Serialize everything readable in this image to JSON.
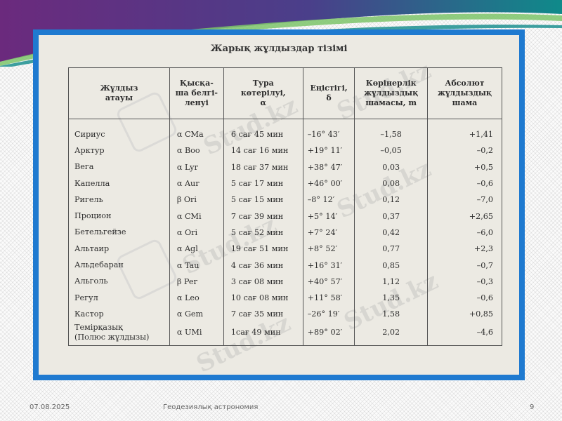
{
  "table": {
    "title": "Жарық жұлдыздар тізімі",
    "headers": [
      [
        "Жұлдыз",
        "атауы"
      ],
      [
        "Қысқа-",
        "ша белгі-",
        "ленуі"
      ],
      [
        "Тура",
        "көтерілуі,",
        "α"
      ],
      [
        "Еңістігі,",
        "δ"
      ],
      [
        "Көрінерлік",
        "жұлдыздық",
        "шамасы, m"
      ],
      [
        "Абсолют",
        "жұлдыздық",
        "шама"
      ]
    ],
    "rows": [
      {
        "name": [
          "Сириус"
        ],
        "sym": "α  CMa",
        "ra": "6 сағ  45 мин",
        "dec": "–16° 43′",
        "app": "–1,58",
        "abs": "+1,41"
      },
      {
        "name": [
          "Арктур"
        ],
        "sym": "α  Boo",
        "ra": "14 сағ 16 мин",
        "dec": "+19° 11′",
        "app": "–0,05",
        "abs": "–0,2"
      },
      {
        "name": [
          "Вега"
        ],
        "sym": "α  Lyr",
        "ra": "18 сағ 37 мин",
        "dec": "+38° 47′",
        "app": "0,03",
        "abs": "+0,5"
      },
      {
        "name": [
          "Капелла"
        ],
        "sym": "α  Aur",
        "ra": "5 сағ  17 мин",
        "dec": "+46° 00′",
        "app": "0,08",
        "abs": "–0,6"
      },
      {
        "name": [
          "Ригель"
        ],
        "sym": "β  Ori",
        "ra": "5 сағ  15 мин",
        "dec": "–8° 12′",
        "app": "0,12",
        "abs": "–7,0"
      },
      {
        "name": [
          "Процион"
        ],
        "sym": "α  CMi",
        "ra": "7 сағ  39 мин",
        "dec": "+5° 14′",
        "app": "0,37",
        "abs": "+2,65"
      },
      {
        "name": [
          "Бетельгейзе"
        ],
        "sym": "α  Ori",
        "ra": "5 сағ  52 мин",
        "dec": "+7° 24′",
        "app": "0,42",
        "abs": "–6,0"
      },
      {
        "name": [
          "Альтаир"
        ],
        "sym": "α  Agl",
        "ra": "19 сағ 51 мин",
        "dec": "+8° 52′",
        "app": "0,77",
        "abs": "+2,3"
      },
      {
        "name": [
          "Альдебаран"
        ],
        "sym": "α  Tau",
        "ra": "4 сағ  36 мин",
        "dec": "+16° 31′",
        "app": "0,85",
        "abs": "–0,7"
      },
      {
        "name": [
          "Альголь"
        ],
        "sym": "β  Per",
        "ra": "3 сағ  08 мин",
        "dec": "+40° 57′",
        "app": "1,12",
        "abs": "–0,3"
      },
      {
        "name": [
          "Регул"
        ],
        "sym": "α  Leo",
        "ra": "10 сағ 08 мин",
        "dec": "+11° 58′",
        "app": "1,35",
        "abs": "–0,6"
      },
      {
        "name": [
          "Кастор"
        ],
        "sym": "α  Gem",
        "ra": "7 сағ  35 мин",
        "dec": "–26° 19′",
        "app": "1,58",
        "abs": "+0,85"
      },
      {
        "name": [
          "Темірқазық",
          "(Полюс жұлдызы)"
        ],
        "sym": "α  UMi",
        "ra": "1сағ   49 мин",
        "dec": "+89° 02′",
        "app": "2,02",
        "abs": "–4,6"
      }
    ]
  },
  "watermark": {
    "text": "Stud.kz"
  },
  "footer": {
    "date": "07.08.2025",
    "title": "Геодезиялық астрономия",
    "page": "9"
  },
  "colors": {
    "frame": "#1f7ad0",
    "banner_purple": "#6b2a7d",
    "banner_teal": "#0f8a8a",
    "banner_green": "#7cc46a",
    "paper": "#eceae3"
  }
}
